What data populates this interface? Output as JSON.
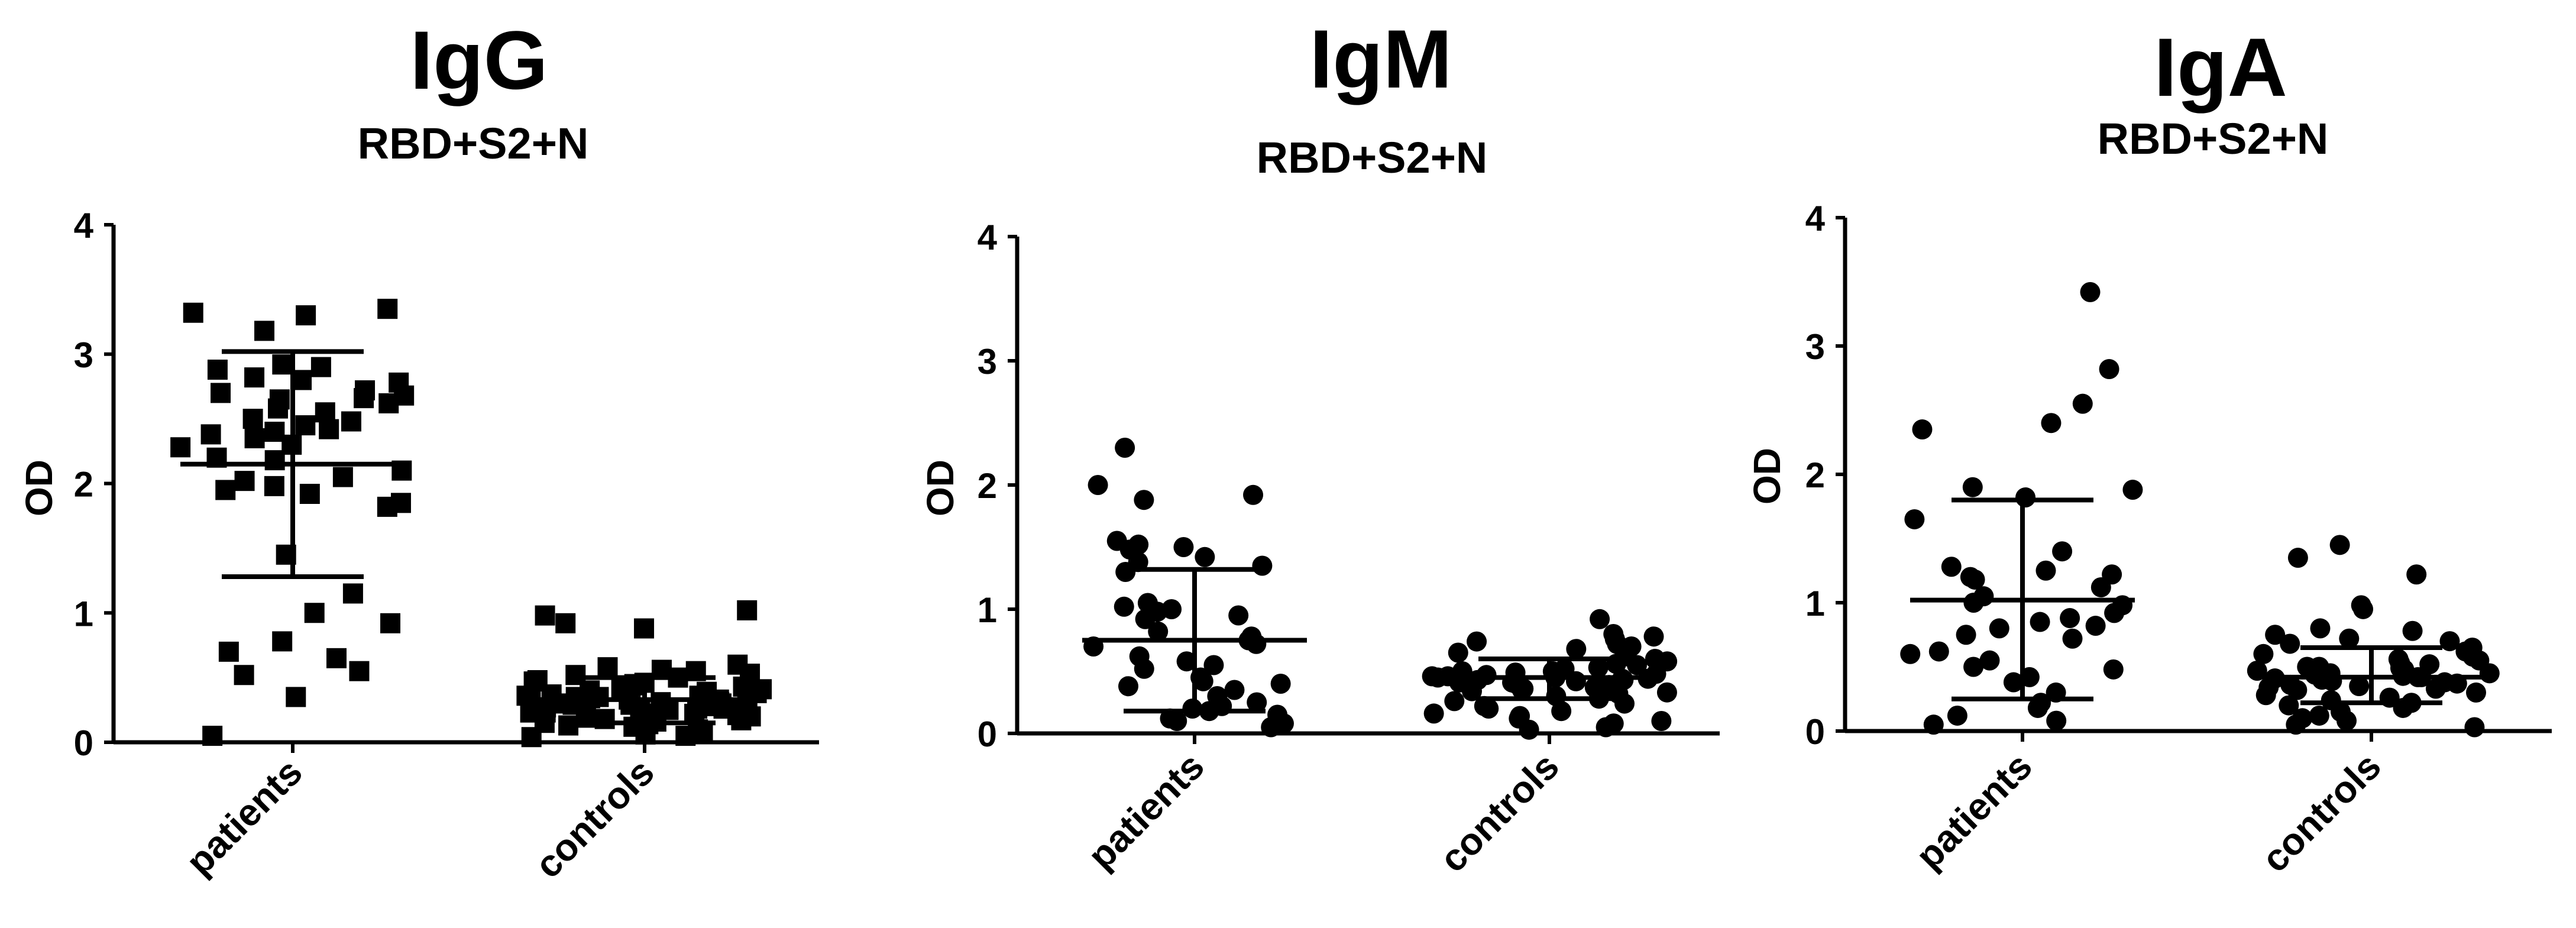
{
  "chart_data": [
    {
      "type": "scatter",
      "title": "IgG",
      "subtitle": "RBD+S2+N",
      "ylabel": "OD",
      "ylim": [
        0,
        4
      ],
      "yticks": [
        "0",
        "1",
        "2",
        "3",
        "4"
      ],
      "categories": [
        "patients",
        "controls"
      ],
      "marker": "square",
      "groups": [
        {
          "name": "patients",
          "mean": 2.15,
          "sd_low": 1.28,
          "sd_high": 3.02,
          "points": [
            3.35,
            3.32,
            3.3,
            3.18,
            2.92,
            2.9,
            2.88,
            2.82,
            2.8,
            2.78,
            2.72,
            2.7,
            2.68,
            2.66,
            2.65,
            2.62,
            2.58,
            2.55,
            2.5,
            2.48,
            2.45,
            2.42,
            2.4,
            2.38,
            2.35,
            2.3,
            2.28,
            2.2,
            2.18,
            2.1,
            2.05,
            2.02,
            1.98,
            1.95,
            1.92,
            1.85,
            1.82,
            1.45,
            1.15,
            1.0,
            0.92,
            0.78,
            0.7,
            0.65,
            0.55,
            0.52,
            0.35,
            0.05
          ]
        },
        {
          "name": "controls",
          "mean": 0.33,
          "sd_low": 0.15,
          "sd_high": 0.5,
          "points": [
            1.02,
            0.98,
            0.92,
            0.88,
            0.6,
            0.58,
            0.56,
            0.55,
            0.53,
            0.52,
            0.5,
            0.48,
            0.47,
            0.46,
            0.45,
            0.44,
            0.43,
            0.42,
            0.41,
            0.4,
            0.39,
            0.38,
            0.37,
            0.36,
            0.36,
            0.35,
            0.35,
            0.34,
            0.34,
            0.33,
            0.33,
            0.32,
            0.32,
            0.31,
            0.31,
            0.3,
            0.3,
            0.3,
            0.29,
            0.29,
            0.28,
            0.28,
            0.27,
            0.27,
            0.26,
            0.26,
            0.25,
            0.25,
            0.24,
            0.24,
            0.23,
            0.23,
            0.22,
            0.22,
            0.21,
            0.2,
            0.2,
            0.19,
            0.18,
            0.17,
            0.16,
            0.15,
            0.14,
            0.13,
            0.12,
            0.1,
            0.08,
            0.06,
            0.05,
            0.04
          ]
        }
      ]
    },
    {
      "type": "scatter",
      "title": "IgM",
      "subtitle": "RBD+S2+N",
      "ylabel": "OD",
      "ylim": [
        0,
        4
      ],
      "yticks": [
        "0",
        "1",
        "2",
        "3",
        "4"
      ],
      "categories": [
        "patients",
        "controls"
      ],
      "marker": "circle",
      "groups": [
        {
          "name": "patients",
          "mean": 0.75,
          "sd_low": 0.18,
          "sd_high": 1.32,
          "points": [
            2.3,
            2.0,
            1.92,
            1.88,
            1.55,
            1.52,
            1.5,
            1.48,
            1.42,
            1.38,
            1.35,
            1.3,
            1.05,
            1.02,
            1.0,
            0.98,
            0.95,
            0.92,
            0.82,
            0.78,
            0.75,
            0.72,
            0.7,
            0.62,
            0.58,
            0.55,
            0.52,
            0.45,
            0.42,
            0.4,
            0.38,
            0.35,
            0.3,
            0.25,
            0.22,
            0.2,
            0.18,
            0.15,
            0.12,
            0.1,
            0.08,
            0.05
          ]
        },
        {
          "name": "controls",
          "mean": 0.45,
          "sd_low": 0.28,
          "sd_high": 0.6,
          "points": [
            0.92,
            0.8,
            0.78,
            0.76,
            0.74,
            0.72,
            0.7,
            0.68,
            0.65,
            0.62,
            0.6,
            0.58,
            0.56,
            0.55,
            0.53,
            0.52,
            0.5,
            0.5,
            0.49,
            0.48,
            0.47,
            0.46,
            0.46,
            0.45,
            0.45,
            0.44,
            0.44,
            0.43,
            0.43,
            0.42,
            0.42,
            0.41,
            0.41,
            0.4,
            0.4,
            0.39,
            0.38,
            0.38,
            0.37,
            0.36,
            0.35,
            0.34,
            0.33,
            0.32,
            0.3,
            0.28,
            0.26,
            0.24,
            0.22,
            0.2,
            0.18,
            0.16,
            0.14,
            0.12,
            0.1,
            0.08,
            0.05,
            0.03
          ]
        }
      ]
    },
    {
      "type": "scatter",
      "title": "IgA",
      "subtitle": "RBD+S2+N",
      "ylabel": "OD",
      "ylim": [
        0,
        4
      ],
      "yticks": [
        "0",
        "1",
        "2",
        "3",
        "4"
      ],
      "categories": [
        "patients",
        "controls"
      ],
      "marker": "circle",
      "groups": [
        {
          "name": "patients",
          "mean": 1.02,
          "sd_low": 0.25,
          "sd_high": 1.8,
          "points": [
            3.42,
            2.82,
            2.55,
            2.4,
            2.35,
            1.9,
            1.88,
            1.82,
            1.65,
            1.4,
            1.28,
            1.25,
            1.22,
            1.2,
            1.18,
            1.12,
            1.05,
            1.0,
            0.98,
            0.92,
            0.88,
            0.85,
            0.82,
            0.8,
            0.75,
            0.72,
            0.62,
            0.6,
            0.55,
            0.5,
            0.48,
            0.42,
            0.38,
            0.3,
            0.22,
            0.18,
            0.12,
            0.08,
            0.05
          ]
        },
        {
          "name": "controls",
          "mean": 0.42,
          "sd_low": 0.22,
          "sd_high": 0.65,
          "points": [
            1.45,
            1.35,
            1.22,
            0.98,
            0.95,
            0.8,
            0.78,
            0.75,
            0.72,
            0.7,
            0.68,
            0.65,
            0.62,
            0.6,
            0.58,
            0.56,
            0.55,
            0.53,
            0.52,
            0.5,
            0.5,
            0.49,
            0.48,
            0.47,
            0.46,
            0.45,
            0.45,
            0.44,
            0.43,
            0.42,
            0.42,
            0.41,
            0.4,
            0.39,
            0.38,
            0.37,
            0.36,
            0.35,
            0.34,
            0.33,
            0.32,
            0.3,
            0.28,
            0.26,
            0.24,
            0.22,
            0.2,
            0.18,
            0.15,
            0.12,
            0.1,
            0.08,
            0.05,
            0.03
          ]
        }
      ]
    }
  ]
}
